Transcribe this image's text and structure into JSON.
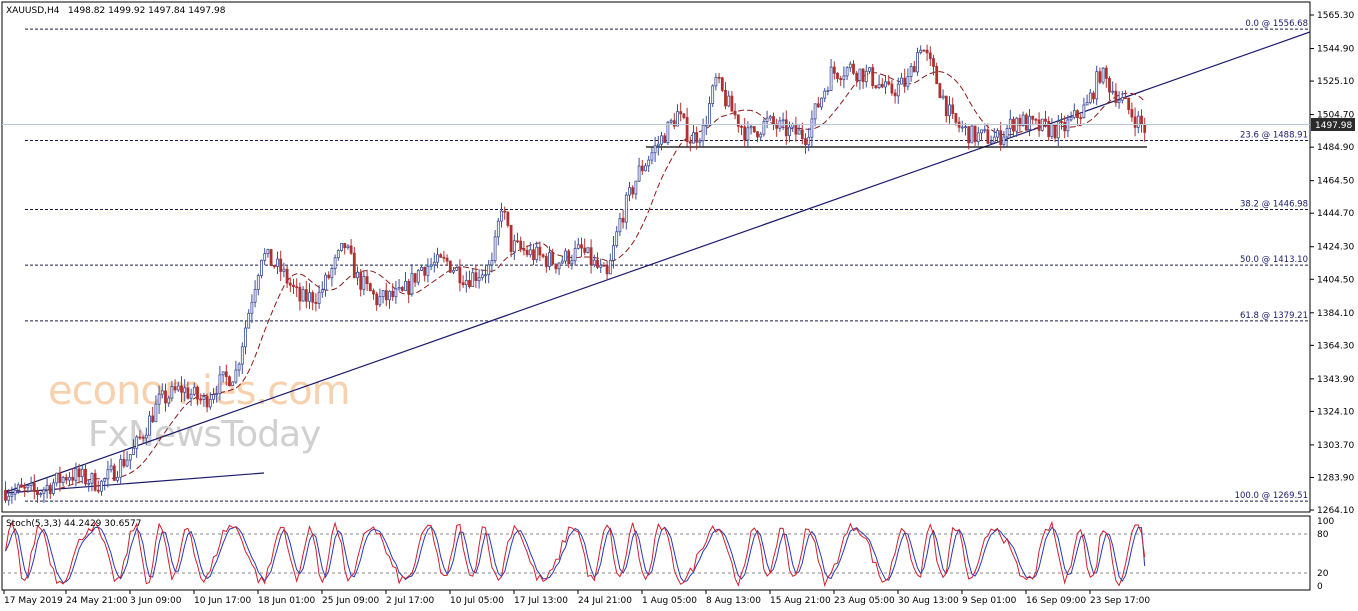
{
  "header": {
    "symbol": "XAUUSD,H4",
    "ohlc": "1498.82 1499.92 1497.84 1497.98"
  },
  "watermark": {
    "line1": "economies.com",
    "line2": "FxNewsToday"
  },
  "colors": {
    "bull": "#3c4e9c",
    "bear": "#b03030",
    "ma": "#8b1a1a",
    "trend": "#1a1a6e",
    "price_tag_bg": "#2b2b2b",
    "stoch_main": "#d02030",
    "stoch_signal": "#2a3ab0"
  },
  "chart_data": [
    {
      "type": "candlestick",
      "ylim": [
        1260.0,
        1568.0
      ],
      "y_ticks": [
        "1565.30",
        "1544.90",
        "1525.10",
        "1504.70",
        "1484.90",
        "1464.50",
        "1444.70",
        "1424.30",
        "1404.50",
        "1384.10",
        "1364.30",
        "1343.90",
        "1324.10",
        "1303.70",
        "1283.90",
        "1264.10"
      ],
      "x_labels": [
        "17 May 2019",
        "24 May 21:00",
        "3 Jun 09:00",
        "10 Jun 17:00",
        "18 Jun 01:00",
        "25 Jun 09:00",
        "2 Jul 17:00",
        "10 Jul 05:00",
        "17 Jul 13:00",
        "24 Jul 21:00",
        "1 Aug 05:00",
        "8 Aug 13:00",
        "15 Aug 21:00",
        "23 Aug 05:00",
        "30 Aug 13:00",
        "9 Sep 01:00",
        "16 Sep 09:00",
        "23 Sep 17:00"
      ],
      "current_price": "1497.98",
      "fibonacci": [
        {
          "label": "0.0 @ 1556.68",
          "price": 1556.68
        },
        {
          "label": "23.6 @ 1488.91",
          "price": 1488.91
        },
        {
          "label": "38.2 @ 1446.98",
          "price": 1446.98
        },
        {
          "label": "50.0 @ 1413.10",
          "price": 1413.1
        },
        {
          "label": "61.8 @ 1379.21",
          "price": 1379.21
        },
        {
          "label": "100.0 @ 1269.51",
          "price": 1269.51
        }
      ],
      "support_level": 1485.0,
      "path": [
        [
          0,
          1276
        ],
        [
          10,
          1275
        ],
        [
          20,
          1286
        ],
        [
          30,
          1280
        ],
        [
          40,
          1300
        ],
        [
          48,
          1330
        ],
        [
          55,
          1338
        ],
        [
          62,
          1330
        ],
        [
          66,
          1340
        ],
        [
          72,
          1348
        ],
        [
          76,
          1385
        ],
        [
          80,
          1420
        ],
        [
          86,
          1410
        ],
        [
          92,
          1392
        ],
        [
          98,
          1395
        ],
        [
          106,
          1425
        ],
        [
          110,
          1405
        ],
        [
          116,
          1392
        ],
        [
          124,
          1395
        ],
        [
          130,
          1412
        ],
        [
          138,
          1415
        ],
        [
          144,
          1405
        ],
        [
          152,
          1412
        ],
        [
          155,
          1450
        ],
        [
          158,
          1425
        ],
        [
          164,
          1420
        ],
        [
          172,
          1415
        ],
        [
          180,
          1422
        ],
        [
          188,
          1405
        ],
        [
          192,
          1440
        ],
        [
          198,
          1470
        ],
        [
          205,
          1490
        ],
        [
          210,
          1505
        ],
        [
          214,
          1490
        ],
        [
          218,
          1495
        ],
        [
          222,
          1525
        ],
        [
          226,
          1510
        ],
        [
          232,
          1492
        ],
        [
          238,
          1500
        ],
        [
          244,
          1495
        ],
        [
          250,
          1492
        ],
        [
          258,
          1530
        ],
        [
          264,
          1533
        ],
        [
          270,
          1528
        ],
        [
          276,
          1518
        ],
        [
          282,
          1525
        ],
        [
          286,
          1548
        ],
        [
          290,
          1530
        ],
        [
          296,
          1500
        ],
        [
          302,
          1492
        ],
        [
          310,
          1490
        ],
        [
          316,
          1502
        ],
        [
          322,
          1497
        ],
        [
          330,
          1495
        ],
        [
          338,
          1510
        ],
        [
          342,
          1530
        ],
        [
          346,
          1520
        ],
        [
          352,
          1505
        ],
        [
          356,
          1496
        ]
      ]
    },
    {
      "type": "line",
      "indicator": "Stoch(5,3,3)",
      "readout": "Stoch(5,3,3) 44.2429 30.6577",
      "main": 44.2429,
      "signal": 30.6577,
      "ylim": [
        0,
        100
      ],
      "levels": [
        20,
        80
      ],
      "y_ticks": [
        "100",
        "80",
        "20",
        "0"
      ]
    }
  ]
}
